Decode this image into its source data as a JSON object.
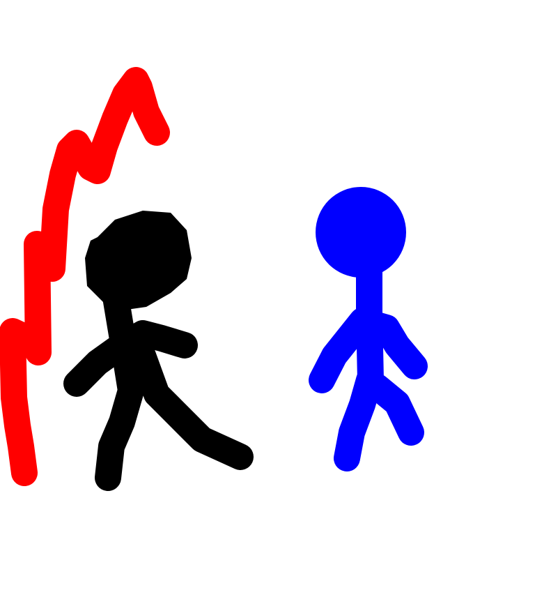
{
  "canvas": {
    "background": "#ffffff"
  },
  "colors": {
    "red_line": "#ff0000",
    "black_figure": "#000000",
    "blue_figure": "#0000ff"
  }
}
